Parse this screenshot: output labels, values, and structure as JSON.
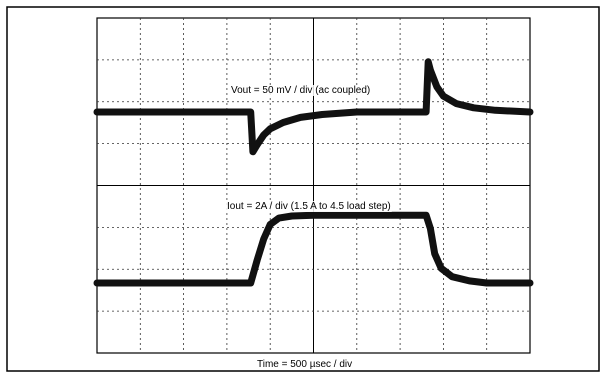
{
  "chart_data": {
    "type": "line",
    "title": "",
    "xlabel": "Time = 500 µsec / div",
    "ylabel": "",
    "grid": true,
    "divisions": {
      "x": 10,
      "y": 8
    },
    "xlim": [
      0,
      10
    ],
    "series": [
      {
        "name": "Vout = 50 mV / div (ac coupled)",
        "y_units": "div",
        "x": [
          0,
          3.55,
          3.6,
          3.7,
          3.85,
          4.0,
          4.3,
          4.7,
          5.2,
          6.0,
          7.6,
          7.65,
          7.7,
          7.85,
          8.0,
          8.3,
          8.7,
          9.2,
          10
        ],
        "y": [
          0,
          0,
          -0.95,
          -0.78,
          -0.55,
          -0.4,
          -0.25,
          -0.13,
          -0.06,
          0,
          0,
          1.2,
          1.0,
          0.6,
          0.38,
          0.2,
          0.1,
          0.04,
          0
        ]
      },
      {
        "name": "Iout = 2A / div (1.5 A to 4.5 load step)",
        "y_units": "div",
        "x": [
          0,
          3.55,
          3.7,
          3.85,
          4.0,
          4.2,
          4.5,
          5.0,
          7.6,
          7.7,
          7.8,
          7.95,
          8.2,
          8.6,
          9.0,
          10
        ],
        "y": [
          0,
          0,
          0.55,
          1.05,
          1.4,
          1.55,
          1.6,
          1.62,
          1.62,
          1.3,
          0.7,
          0.35,
          0.15,
          0.05,
          0,
          0
        ]
      }
    ]
  }
}
